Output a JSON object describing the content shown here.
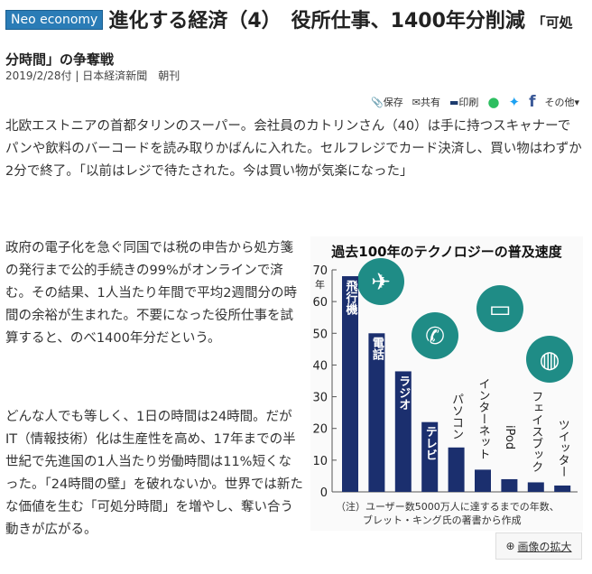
{
  "header": {
    "badge": "Neo economy",
    "title": "進化する経済（4）　役所仕事、1400年分削減",
    "subtitle": "「可処分時間」の争奪戦",
    "date": "2019/2/28付",
    "source": "日本経済新聞　朝刊"
  },
  "toolbar": {
    "save": "保存",
    "share": "共有",
    "print": "印刷",
    "other": "その他"
  },
  "body": {
    "p1": "北欧エストニアの首都タリンのスーパー。会社員のカトリンさん（40）は手に持つスキャナーでパンや飲料のバーコードを読み取りかばんに入れた。セルフレジでカード決済し、買い物はわずか2分で終了。「以前はレジで待たされた。今は買い物が気楽になった」",
    "p2": "政府の電子化を急ぐ同国では税の申告から処方箋の発行まで公的手続きの99%がオンラインで済む。その結果、1人当たり年間で平均2週間分の時間の余裕が生まれた。不要になった役所仕事を試算すると、のべ1400年分だという。",
    "p3": "どんな人でも等しく、1日の時間は24時間。だがIT（情報技術）化は生産性を高め、17年までの半世紀で先進国の1人当たり労働時間は11%短くなった。「24時間の壁」を破れないか。世界では新たな価値を生む「可処分時間」を増やし、奪い合う動きが広がる。"
  },
  "image_zoom": "画像の拡大",
  "chart_data": {
    "type": "bar",
    "title": "過去100年のテクノロジーの普及速度",
    "ylabel": "年",
    "ylim": [
      0,
      70
    ],
    "yticks": [
      0,
      10,
      20,
      30,
      40,
      50,
      60,
      70
    ],
    "categories": [
      "飛行機",
      "電話",
      "ラジオ",
      "テレビ",
      "パソコン",
      "インターネット",
      "iPod",
      "フェイスブック",
      "ツイッター"
    ],
    "values": [
      68,
      50,
      38,
      22,
      14,
      7,
      4,
      3,
      2
    ],
    "note": "（注）ユーザー数5000万人に達するまでの年数、ブレット・キング氏の著書から作成",
    "bar_color": "#1b2f6e",
    "icon_color": "#1f8c86"
  }
}
